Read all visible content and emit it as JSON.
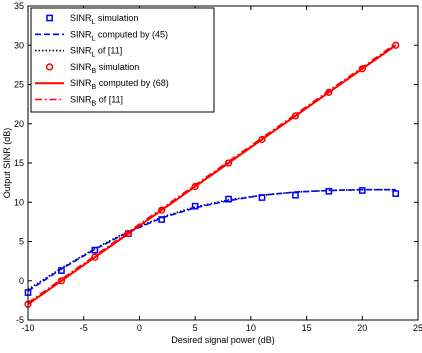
{
  "chart_data": {
    "type": "line",
    "title": "",
    "xlabel": "Desired signal power (dB)",
    "ylabel": "Output SINR (dB)",
    "xlim": [
      -10,
      25
    ],
    "ylim": [
      -5,
      35
    ],
    "xticks": [
      -10,
      -5,
      0,
      5,
      10,
      15,
      20,
      25
    ],
    "yticks": [
      -5,
      0,
      5,
      10,
      15,
      20,
      25,
      30,
      35
    ],
    "grid": false,
    "legend_position": "top-left",
    "legend": [
      {
        "base": "SINR",
        "sub": "L",
        "suffix": " simulation",
        "style": "marker-square",
        "color": "#0000ff"
      },
      {
        "base": "SINR",
        "sub": "L",
        "suffix": " computed by (45)",
        "style": "dashed",
        "color": "#0000ff"
      },
      {
        "base": "SINR",
        "sub": "L",
        "suffix": " of [11]",
        "style": "dotted",
        "color": "#000000"
      },
      {
        "base": "SINR",
        "sub": "B",
        "suffix": " simulation",
        "style": "marker-circle",
        "color": "#ff0000"
      },
      {
        "base": "SINR",
        "sub": "B",
        "suffix": " computed by (68)",
        "style": "solid",
        "color": "#ff0000"
      },
      {
        "base": "SINR",
        "sub": "B",
        "suffix": " of [11]",
        "style": "dashdot",
        "color": "#ff0000"
      }
    ],
    "series": [
      {
        "key": "L_sim",
        "style": "marker-square",
        "color": "#0000ff",
        "x": [
          -10,
          -7,
          -4,
          -1,
          2,
          5,
          8,
          11,
          14,
          17,
          20,
          23
        ],
        "y": [
          -1.5,
          1.3,
          3.9,
          6.0,
          7.8,
          9.5,
          10.4,
          10.6,
          10.9,
          11.4,
          11.5,
          11.1
        ]
      },
      {
        "key": "L_computed",
        "style": "dashed",
        "color": "#0000ff",
        "x": [
          -10,
          -7,
          -4,
          -1,
          2,
          5,
          8,
          11,
          14,
          17,
          20,
          23
        ],
        "y": [
          -1.3,
          1.5,
          4.0,
          6.2,
          8.0,
          9.3,
          10.2,
          10.9,
          11.3,
          11.5,
          11.6,
          11.6
        ]
      },
      {
        "key": "L_ref",
        "style": "dotted",
        "color": "#000000",
        "x": [
          -10,
          -7,
          -4,
          -1,
          2,
          5,
          8,
          11,
          14,
          17,
          20,
          23
        ],
        "y": [
          -1.1,
          1.6,
          4.1,
          6.3,
          8.1,
          9.4,
          10.3,
          10.9,
          11.3,
          11.5,
          11.6,
          11.6
        ]
      },
      {
        "key": "B_sim",
        "style": "marker-circle",
        "color": "#ff0000",
        "x": [
          -10,
          -7,
          -4,
          -1,
          2,
          5,
          8,
          11,
          14,
          17,
          20,
          23
        ],
        "y": [
          -3.0,
          0.0,
          3.0,
          6.0,
          9.0,
          12.0,
          15.0,
          18.0,
          21.0,
          24.0,
          27.0,
          30.0
        ]
      },
      {
        "key": "B_computed",
        "style": "solid",
        "color": "#ff0000",
        "x": [
          -10,
          23
        ],
        "y": [
          -3.0,
          30.0
        ]
      },
      {
        "key": "B_ref",
        "style": "dashdot",
        "color": "#ff0000",
        "x": [
          -10,
          23
        ],
        "y": [
          -2.8,
          30.2
        ]
      }
    ]
  }
}
